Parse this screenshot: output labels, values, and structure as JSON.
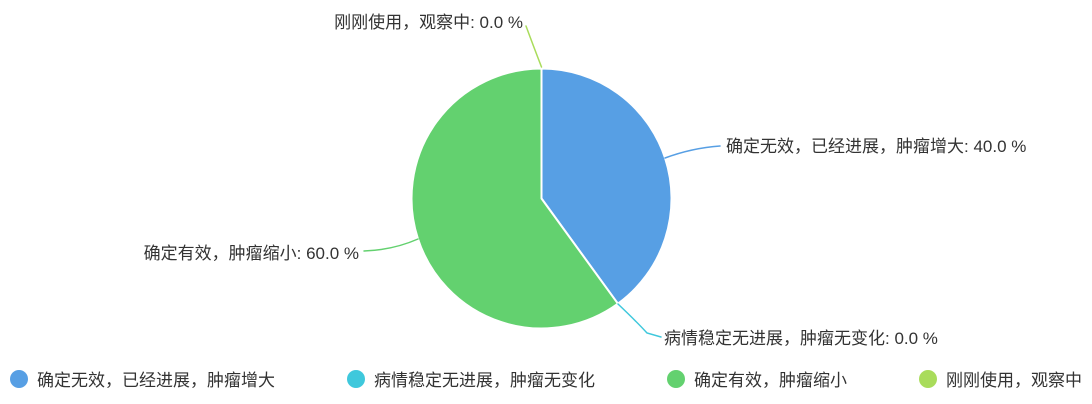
{
  "chart_data": {
    "type": "pie",
    "title": "",
    "unit": "%",
    "legend_position": "bottom",
    "start_angle_deg": 90,
    "clockwise": true,
    "text_color": "#333333",
    "items": [
      {
        "label": "确定无效，已经进展，肿瘤增大",
        "value": 40.0,
        "color": "#579FE4",
        "callout": "确定无效，已经进展，肿瘤增大: 40.0 %"
      },
      {
        "label": "病情稳定无进展，肿瘤无变化",
        "value": 0.0,
        "color": "#3FC8DC",
        "callout": "病情稳定无进展，肿瘤无变化: 0.0 %"
      },
      {
        "label": "确定有效，肿瘤缩小",
        "value": 60.0,
        "color": "#63D16F",
        "callout": "确定有效，肿瘤缩小: 60.0 %"
      },
      {
        "label": "刚刚使用，观察中",
        "value": 0.0,
        "color": "#A9DC5B",
        "callout": "刚刚使用，观察中: 0.0 %"
      }
    ]
  }
}
